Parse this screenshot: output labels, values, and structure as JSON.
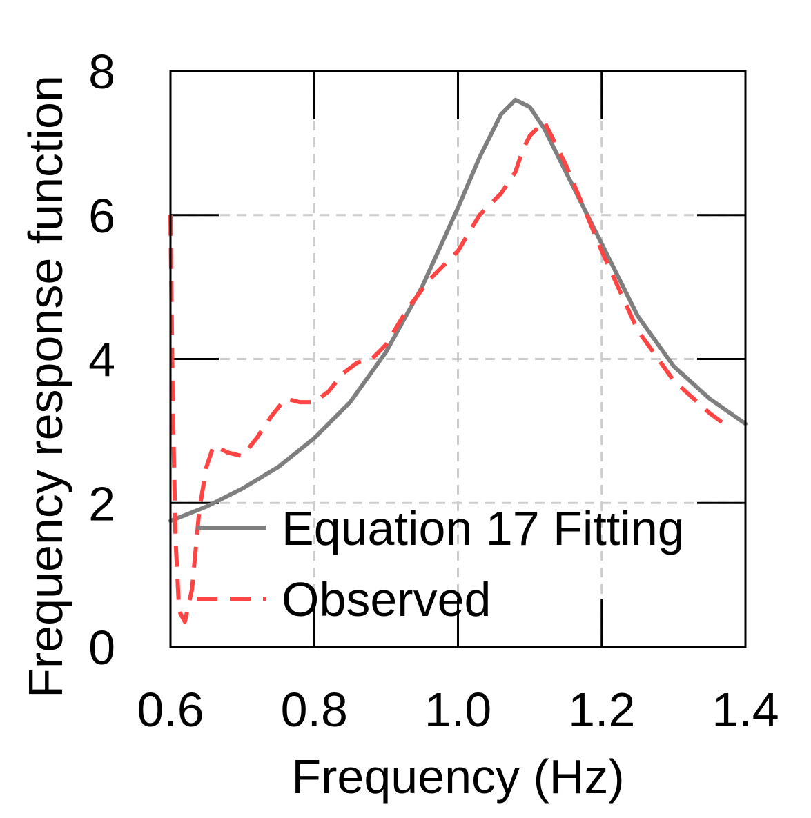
{
  "chart_data": {
    "type": "line",
    "title": "",
    "xlabel": "Frequency (Hz)",
    "ylabel": "Frequency response function",
    "xlim": [
      0.6,
      1.4
    ],
    "ylim": [
      0,
      8
    ],
    "xticks": [
      0.6,
      0.8,
      1.0,
      1.2,
      1.4
    ],
    "xtick_labels": [
      "0.6",
      "0.8",
      "1.0",
      "1.2",
      "1.4"
    ],
    "yticks": [
      0,
      2,
      4,
      6,
      8
    ],
    "ytick_labels": [
      "0",
      "2",
      "4",
      "6",
      "8"
    ],
    "grid": true,
    "legend_position": "bottom-right",
    "colors": {
      "fitting": "#7f7f7f",
      "observed": "#ff4444",
      "grid": "#cccccc",
      "axes": "#000000"
    },
    "series": [
      {
        "name": "Equation 17 Fitting",
        "style": "solid",
        "x": [
          0.6,
          0.65,
          0.7,
          0.75,
          0.8,
          0.85,
          0.9,
          0.95,
          1.0,
          1.03,
          1.06,
          1.08,
          1.1,
          1.12,
          1.15,
          1.2,
          1.25,
          1.3,
          1.35,
          1.4
        ],
        "y": [
          1.75,
          1.95,
          2.2,
          2.5,
          2.9,
          3.4,
          4.1,
          5.0,
          6.1,
          6.8,
          7.4,
          7.6,
          7.5,
          7.2,
          6.6,
          5.6,
          4.6,
          3.9,
          3.45,
          3.1
        ]
      },
      {
        "name": "Observed",
        "style": "dashed",
        "x": [
          0.6,
          0.603,
          0.607,
          0.612,
          0.62,
          0.63,
          0.64,
          0.65,
          0.66,
          0.67,
          0.68,
          0.7,
          0.72,
          0.74,
          0.76,
          0.78,
          0.8,
          0.82,
          0.84,
          0.86,
          0.88,
          0.9,
          0.93,
          0.96,
          1.0,
          1.03,
          1.06,
          1.08,
          1.09,
          1.1,
          1.11,
          1.12,
          1.15,
          1.2,
          1.25,
          1.3,
          1.35,
          1.37
        ],
        "y": [
          6.0,
          3.5,
          1.5,
          0.5,
          0.35,
          0.8,
          1.9,
          2.5,
          2.8,
          2.75,
          2.7,
          2.65,
          2.9,
          3.2,
          3.45,
          3.4,
          3.4,
          3.55,
          3.8,
          3.95,
          4.0,
          4.2,
          4.7,
          5.1,
          5.5,
          6.0,
          6.3,
          6.6,
          6.9,
          7.1,
          7.2,
          7.3,
          6.7,
          5.5,
          4.4,
          3.7,
          3.25,
          3.1
        ]
      }
    ]
  }
}
